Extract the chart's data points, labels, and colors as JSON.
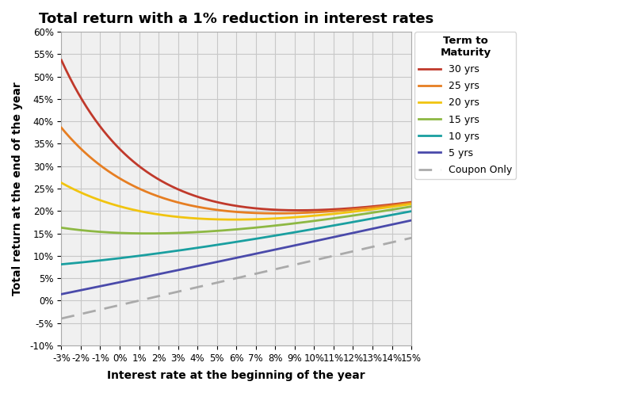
{
  "title": "Total return with a 1% reduction in interest rates",
  "xlabel": "Interest rate at the beginning of the year",
  "ylabel": "Total return at the end of the year",
  "x_ticks_labels": [
    "-3%",
    "-2%",
    "-1%",
    "0%",
    "1%",
    "2%",
    "3%",
    "4%",
    "5%",
    "6%",
    "7%",
    "8%",
    "9%",
    "10%",
    "11%",
    "12%",
    "13%",
    "14%",
    "15%"
  ],
  "x_rates": [
    -0.03,
    -0.02,
    -0.01,
    0.0,
    0.01,
    0.02,
    0.03,
    0.04,
    0.05,
    0.06,
    0.07,
    0.08,
    0.09,
    0.1,
    0.11,
    0.12,
    0.13,
    0.14,
    0.15
  ],
  "maturities": [
    30,
    25,
    20,
    15,
    10,
    5
  ],
  "colors": [
    "#c0392b",
    "#e67e22",
    "#f1c40f",
    "#8db843",
    "#1a9fa0",
    "#4a4aaa"
  ],
  "legend_title": "Term to\nMaturity",
  "legend_labels": [
    "30 yrs",
    "25 yrs",
    "20 yrs",
    "15 yrs",
    "10 yrs",
    "5 yrs",
    "Coupon Only"
  ],
  "coupon_color": "#aaaaaa",
  "ylim": [
    -0.1,
    0.6
  ],
  "y_ticks": [
    -0.1,
    -0.05,
    0.0,
    0.05,
    0.1,
    0.15,
    0.2,
    0.25,
    0.3,
    0.35,
    0.4,
    0.45,
    0.5,
    0.55,
    0.6
  ],
  "background_color": "#ffffff",
  "grid_color": "#c8c8c8",
  "title_fontsize": 13,
  "axis_label_fontsize": 10,
  "tick_fontsize": 8.5
}
